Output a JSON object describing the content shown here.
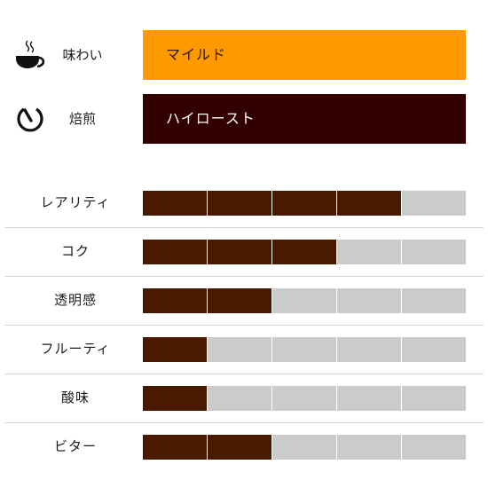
{
  "flavor": {
    "label": "味わい",
    "value": "マイルド",
    "color": "#ff9900",
    "icon": "coffee-cup-icon"
  },
  "roast": {
    "label": "焙煎",
    "value": "ハイロースト",
    "color": "#330000",
    "icon": "timer-icon"
  },
  "scale_max": 5,
  "colors": {
    "filled": "#4a1a00",
    "empty": "#cbcbcb"
  },
  "ratings": [
    {
      "label": "レアリティ",
      "value": 4
    },
    {
      "label": "コク",
      "value": 3
    },
    {
      "label": "透明感",
      "value": 2
    },
    {
      "label": "フルーティ",
      "value": 1
    },
    {
      "label": "酸味",
      "value": 1
    },
    {
      "label": "ビター",
      "value": 2
    }
  ]
}
